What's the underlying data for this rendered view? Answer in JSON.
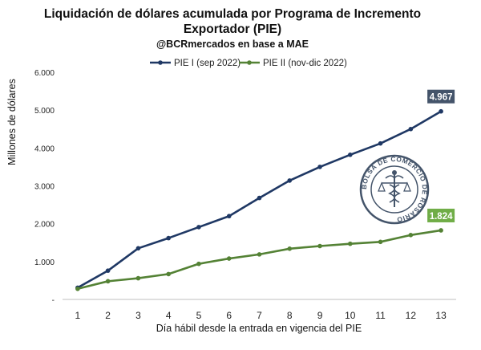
{
  "chart_data": {
    "type": "line",
    "title_line1": "Liquidación de dólares acumulada por Programa de Incremento",
    "title_line2": "Exportador (PIE)",
    "subtitle": "@BCRmercados  en base a MAE",
    "xlabel": "Día hábil desde la entrada en vigencia del PIE",
    "ylabel": "Millones de dólares",
    "x": [
      1,
      2,
      3,
      4,
      5,
      6,
      7,
      8,
      9,
      10,
      11,
      12,
      13
    ],
    "ylim": [
      0,
      6000
    ],
    "yticks": [
      0,
      1000,
      2000,
      3000,
      4000,
      5000,
      6000
    ],
    "ytick_labels": [
      "-",
      "1.000",
      "2.000",
      "3.000",
      "4.000",
      "5.000",
      "6.000"
    ],
    "grid": false,
    "legend_position": "top",
    "series": [
      {
        "name": "PIE I (sep 2022)",
        "color": "#1f3864",
        "values": [
          310,
          760,
          1350,
          1620,
          1910,
          2200,
          2680,
          3140,
          3500,
          3820,
          4120,
          4500,
          4967
        ],
        "end_label": "4.967",
        "label_color": "#44546a"
      },
      {
        "name": "PIE II (nov-dic 2022)",
        "color": "#548235",
        "values": [
          280,
          480,
          560,
          670,
          940,
          1080,
          1190,
          1340,
          1410,
          1470,
          1520,
          1700,
          1824
        ],
        "end_label": "1.824",
        "label_color": "#70ad47"
      }
    ],
    "watermark_text": "BOLSA DE COMERCIO DE ROSARIO"
  }
}
